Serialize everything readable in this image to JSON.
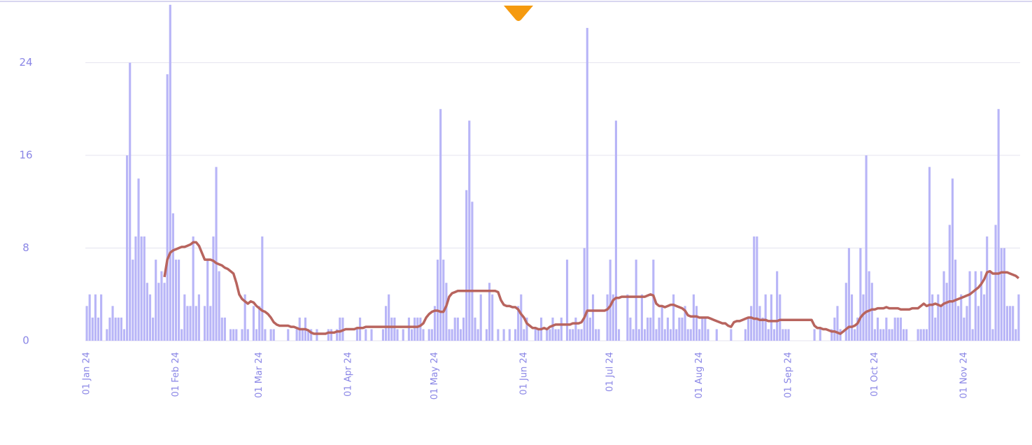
{
  "chart_data": {
    "type": "bar",
    "categories": [
      "01 Jan 24",
      null,
      null,
      null,
      null,
      null,
      null,
      null,
      null,
      null,
      null,
      null,
      null,
      null,
      null,
      null,
      null,
      null,
      null,
      null,
      null,
      null,
      null,
      null,
      null,
      null,
      null,
      null,
      null,
      null,
      null,
      "01 Feb 24",
      null,
      null,
      null,
      null,
      null,
      null,
      null,
      null,
      null,
      null,
      null,
      null,
      null,
      null,
      null,
      null,
      null,
      null,
      null,
      null,
      null,
      null,
      null,
      null,
      null,
      null,
      null,
      null,
      "01 Mar 24",
      null,
      null,
      null,
      null,
      null,
      null,
      null,
      null,
      null,
      null,
      null,
      null,
      null,
      null,
      null,
      null,
      null,
      null,
      null,
      null,
      null,
      null,
      null,
      null,
      null,
      null,
      null,
      null,
      null,
      null,
      "01 Apr 24",
      null,
      null,
      null,
      null,
      null,
      null,
      null,
      null,
      null,
      null,
      null,
      null,
      null,
      null,
      null,
      null,
      null,
      null,
      null,
      null,
      null,
      null,
      null,
      null,
      null,
      null,
      null,
      null,
      null,
      "01 May 24",
      null,
      null,
      null,
      null,
      null,
      null,
      null,
      null,
      null,
      null,
      null,
      null,
      null,
      null,
      null,
      null,
      null,
      null,
      null,
      null,
      null,
      null,
      null,
      null,
      null,
      null,
      null,
      null,
      null,
      null,
      "01 Jun 24",
      null,
      null,
      null,
      null,
      null,
      null,
      null,
      null,
      null,
      null,
      null,
      null,
      null,
      null,
      null,
      null,
      null,
      null,
      null,
      null,
      null,
      null,
      null,
      null,
      null,
      null,
      null,
      null,
      null,
      "01 Jul 24",
      null,
      null,
      null,
      null,
      null,
      null,
      null,
      null,
      null,
      null,
      null,
      null,
      null,
      null,
      null,
      null,
      null,
      null,
      null,
      null,
      null,
      null,
      null,
      null,
      null,
      null,
      null,
      null,
      null,
      null,
      "01 Aug 24",
      null,
      null,
      null,
      null,
      null,
      null,
      null,
      null,
      null,
      null,
      null,
      null,
      null,
      null,
      null,
      null,
      null,
      null,
      null,
      null,
      null,
      null,
      null,
      null,
      null,
      null,
      null,
      null,
      null,
      null,
      "01 Sep 24",
      null,
      null,
      null,
      null,
      null,
      null,
      null,
      null,
      null,
      null,
      null,
      null,
      null,
      null,
      null,
      null,
      null,
      null,
      null,
      null,
      null,
      null,
      null,
      null,
      null,
      null,
      null,
      null,
      null,
      "01 Oct 24",
      null,
      null,
      null,
      null,
      null,
      null,
      null,
      null,
      null,
      null,
      null,
      null,
      null,
      null,
      null,
      null,
      null,
      null,
      null,
      null,
      null,
      null,
      null,
      null,
      null,
      null,
      null,
      null,
      null,
      null,
      "01 Nov 24",
      null,
      null,
      null,
      null,
      null,
      null,
      null,
      null,
      null,
      null,
      null,
      null,
      null,
      null,
      null,
      null,
      null,
      null,
      null
    ],
    "series": [
      {
        "type": "bar",
        "color": "#b8b5f7",
        "values": [
          3,
          4,
          2,
          4,
          2,
          4,
          0,
          1,
          2,
          3,
          2,
          2,
          2,
          1,
          16,
          24,
          7,
          9,
          14,
          9,
          9,
          5,
          4,
          2,
          7,
          5,
          6,
          5,
          23,
          29,
          11,
          7,
          7,
          1,
          4,
          3,
          3,
          9,
          3,
          4,
          0,
          3,
          7,
          3,
          9,
          15,
          6,
          2,
          2,
          0,
          1,
          1,
          1,
          0,
          1,
          4,
          1,
          0,
          3,
          1,
          3,
          9,
          1,
          0,
          1,
          1,
          0,
          0,
          0,
          0,
          1,
          0,
          0,
          1,
          2,
          1,
          2,
          1,
          1,
          0,
          1,
          0,
          0,
          0,
          1,
          1,
          0,
          1,
          2,
          2,
          0,
          0,
          0,
          0,
          1,
          2,
          0,
          1,
          0,
          1,
          0,
          0,
          0,
          1,
          3,
          4,
          2,
          2,
          1,
          0,
          1,
          0,
          2,
          1,
          2,
          2,
          2,
          1,
          0,
          1,
          1,
          3,
          7,
          20,
          7,
          5,
          1,
          1,
          2,
          2,
          1,
          2,
          13,
          19,
          12,
          2,
          1,
          4,
          0,
          1,
          5,
          4,
          0,
          1,
          0,
          1,
          0,
          1,
          0,
          1,
          3,
          4,
          1,
          2,
          0,
          0,
          1,
          1,
          2,
          0,
          1,
          1,
          2,
          1,
          1,
          2,
          0,
          7,
          1,
          1,
          2,
          1,
          1,
          8,
          27,
          2,
          4,
          1,
          1,
          0,
          0,
          4,
          7,
          4,
          19,
          1,
          0,
          0,
          4,
          2,
          1,
          7,
          1,
          4,
          1,
          2,
          2,
          7,
          1,
          2,
          3,
          1,
          2,
          1,
          4,
          1,
          2,
          2,
          3,
          1,
          1,
          4,
          3,
          1,
          2,
          2,
          1,
          0,
          0,
          1,
          0,
          0,
          0,
          0,
          1,
          0,
          0,
          0,
          0,
          1,
          2,
          3,
          9,
          9,
          3,
          2,
          4,
          1,
          4,
          1,
          6,
          4,
          1,
          1,
          1,
          0,
          0,
          0,
          0,
          0,
          0,
          0,
          0,
          1,
          0,
          1,
          0,
          0,
          0,
          1,
          2,
          3,
          1,
          0,
          5,
          8,
          4,
          1,
          2,
          8,
          4,
          16,
          6,
          5,
          1,
          2,
          1,
          1,
          2,
          1,
          1,
          2,
          2,
          2,
          1,
          1,
          0,
          0,
          0,
          1,
          1,
          1,
          1,
          15,
          4,
          2,
          4,
          3,
          6,
          5,
          10,
          14,
          7,
          3,
          4,
          2,
          3,
          6,
          1,
          6,
          3,
          6,
          4,
          9,
          6,
          1,
          10,
          20,
          8,
          8,
          3,
          3,
          3,
          1,
          4
        ]
      },
      {
        "type": "line",
        "color": "#b8645e",
        "values": [
          null,
          null,
          null,
          null,
          null,
          null,
          null,
          null,
          null,
          null,
          null,
          null,
          null,
          null,
          null,
          null,
          null,
          null,
          null,
          null,
          null,
          null,
          null,
          null,
          null,
          null,
          null,
          5.5,
          7,
          7.6,
          7.8,
          7.9,
          8.0,
          8.1,
          8.1,
          8.2,
          8.3,
          8.5,
          8.5,
          8.2,
          7.6,
          7.0,
          7.0,
          7.0,
          6.9,
          6.7,
          6.6,
          6.5,
          6.3,
          6.2,
          6.0,
          5.8,
          5.0,
          4.0,
          3.6,
          3.4,
          3.2,
          3.4,
          3.3,
          3.0,
          2.8,
          2.6,
          2.5,
          2.3,
          2.0,
          1.6,
          1.4,
          1.3,
          1.3,
          1.3,
          1.3,
          1.2,
          1.2,
          1.1,
          1.0,
          1.0,
          1.0,
          0.9,
          0.7,
          0.6,
          0.6,
          0.6,
          0.6,
          0.6,
          0.7,
          0.7,
          0.7,
          0.8,
          0.8,
          0.9,
          1.0,
          1.0,
          1.0,
          1.0,
          1.1,
          1.1,
          1.1,
          1.2,
          1.2,
          1.2,
          1.2,
          1.2,
          1.2,
          1.2,
          1.2,
          1.2,
          1.2,
          1.2,
          1.2,
          1.2,
          1.2,
          1.2,
          1.2,
          1.2,
          1.2,
          1.2,
          1.3,
          1.5,
          2.0,
          2.3,
          2.5,
          2.6,
          2.6,
          2.5,
          2.5,
          3.0,
          3.8,
          4.1,
          4.2,
          4.3,
          4.3,
          4.3,
          4.3,
          4.3,
          4.3,
          4.3,
          4.3,
          4.3,
          4.3,
          4.3,
          4.3,
          4.3,
          4.3,
          4.2,
          3.5,
          3.1,
          3.0,
          3.0,
          2.9,
          2.9,
          2.7,
          2.3,
          2.0,
          1.5,
          1.3,
          1.1,
          1.1,
          1.0,
          1.0,
          1.1,
          1.0,
          1.2,
          1.3,
          1.4,
          1.4,
          1.4,
          1.4,
          1.4,
          1.4,
          1.5,
          1.5,
          1.5,
          1.6,
          2.0,
          2.6,
          2.6,
          2.6,
          2.6,
          2.6,
          2.6,
          2.6,
          2.7,
          3.0,
          3.5,
          3.7,
          3.7,
          3.8,
          3.8,
          3.8,
          3.8,
          3.8,
          3.8,
          3.8,
          3.8,
          3.8,
          3.9,
          4.0,
          3.9,
          3.2,
          3.0,
          3.0,
          2.9,
          3.0,
          3.1,
          3.1,
          3.0,
          2.9,
          2.8,
          2.6,
          2.2,
          2.1,
          2.1,
          2.1,
          2.0,
          2.0,
          2.0,
          2.0,
          1.9,
          1.8,
          1.7,
          1.6,
          1.5,
          1.5,
          1.3,
          1.2,
          1.6,
          1.7,
          1.7,
          1.8,
          1.9,
          2.0,
          2.0,
          1.9,
          1.9,
          1.8,
          1.8,
          1.8,
          1.7,
          1.7,
          1.7,
          1.7,
          1.8,
          1.8,
          1.8,
          1.8,
          1.8,
          1.8,
          1.8,
          1.8,
          1.8,
          1.8,
          1.8,
          1.8,
          1.3,
          1.1,
          1.1,
          1.0,
          1.0,
          0.9,
          0.8,
          0.8,
          0.7,
          0.6,
          0.8,
          1.0,
          1.2,
          1.2,
          1.3,
          1.5,
          2.0,
          2.3,
          2.5,
          2.6,
          2.7,
          2.7,
          2.8,
          2.8,
          2.8,
          2.9,
          2.8,
          2.8,
          2.8,
          2.8,
          2.7,
          2.7,
          2.7,
          2.7,
          2.8,
          2.8,
          2.8,
          3.0,
          3.2,
          3.0,
          3.1,
          3.1,
          3.2,
          3.1,
          3.0,
          3.2,
          3.3,
          3.4,
          3.4,
          3.5,
          3.6,
          3.7,
          3.8,
          3.9,
          4.0,
          4.2,
          4.4,
          4.6,
          4.9,
          5.3,
          5.9,
          6.0,
          5.8,
          5.8,
          5.8,
          5.9,
          5.9,
          5.9,
          5.8,
          5.7,
          5.6,
          5.4
        ]
      }
    ],
    "ylim": [
      0,
      29
    ],
    "yticks": [
      0,
      8,
      16,
      24
    ],
    "grid": true
  }
}
